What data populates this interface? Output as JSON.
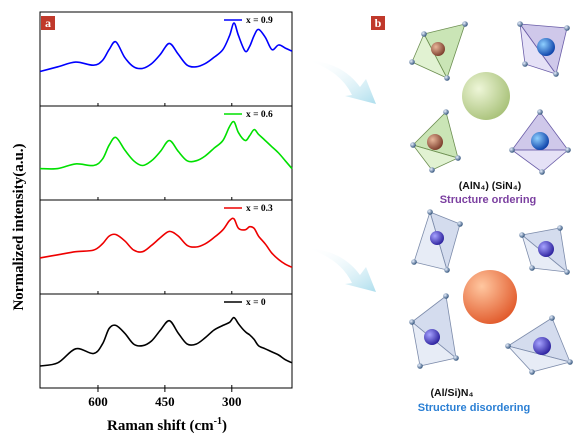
{
  "panel_a_label": "a",
  "panel_b_label": "b",
  "colors": {
    "badge": "#c0392b",
    "series": [
      "#0000ff",
      "#00e000",
      "#ee0000",
      "#000000"
    ],
    "ordering": "#7b3fa0",
    "disordering": "#2a7fd4",
    "arrow": "#bfe4f0"
  },
  "chart_data": {
    "type": "line",
    "xlabel": "Raman shift (cm",
    "xlabel_sup": "-1",
    "xlabel_end": ")",
    "ylabel": "Normalized intensity(a.u.)",
    "x_reversed": true,
    "xlim": [
      730,
      165
    ],
    "x_ticks": [
      600,
      450,
      300
    ],
    "x_tick_labels": [
      "600",
      "450",
      "300"
    ],
    "layout": "stacked panels, legend top-right of each panel",
    "series": [
      {
        "name": "x = 0.9",
        "x": [
          730,
          690,
          650,
          610,
          590,
          575,
          560,
          540,
          520,
          500,
          480,
          460,
          440,
          420,
          400,
          380,
          360,
          340,
          320,
          305,
          295,
          285,
          270,
          260,
          250,
          240,
          225,
          210,
          195,
          180,
          165
        ],
        "y": [
          0.34,
          0.4,
          0.46,
          0.42,
          0.48,
          0.62,
          0.72,
          0.52,
          0.4,
          0.38,
          0.44,
          0.56,
          0.7,
          0.56,
          0.42,
          0.4,
          0.44,
          0.52,
          0.62,
          0.8,
          0.96,
          0.8,
          0.6,
          0.66,
          0.8,
          0.88,
          0.78,
          0.62,
          0.68,
          0.64,
          0.6
        ]
      },
      {
        "name": "x = 0.6",
        "x": [
          730,
          690,
          650,
          610,
          590,
          575,
          560,
          540,
          520,
          500,
          480,
          460,
          440,
          420,
          400,
          380,
          360,
          340,
          320,
          305,
          295,
          285,
          270,
          260,
          250,
          240,
          225,
          210,
          195,
          180,
          165
        ],
        "y": [
          0.3,
          0.3,
          0.36,
          0.34,
          0.42,
          0.6,
          0.7,
          0.54,
          0.4,
          0.34,
          0.4,
          0.52,
          0.66,
          0.52,
          0.4,
          0.4,
          0.46,
          0.56,
          0.66,
          0.84,
          0.9,
          0.76,
          0.66,
          0.72,
          0.8,
          0.74,
          0.66,
          0.58,
          0.5,
          0.4,
          0.3
        ]
      },
      {
        "name": "x = 0.3",
        "x": [
          730,
          690,
          650,
          610,
          590,
          575,
          560,
          540,
          520,
          500,
          480,
          460,
          440,
          420,
          400,
          380,
          360,
          340,
          320,
          305,
          295,
          285,
          270,
          260,
          250,
          240,
          225,
          210,
          195,
          180,
          165
        ],
        "y": [
          0.36,
          0.4,
          0.44,
          0.46,
          0.54,
          0.64,
          0.66,
          0.58,
          0.46,
          0.44,
          0.52,
          0.62,
          0.7,
          0.64,
          0.52,
          0.5,
          0.54,
          0.62,
          0.72,
          0.84,
          0.86,
          0.74,
          0.72,
          0.76,
          0.74,
          0.64,
          0.54,
          0.42,
          0.34,
          0.28,
          0.24
        ]
      },
      {
        "name": "x = 0",
        "x": [
          730,
          690,
          650,
          610,
          590,
          575,
          560,
          540,
          520,
          500,
          480,
          460,
          440,
          420,
          400,
          380,
          360,
          340,
          320,
          305,
          295,
          285,
          270,
          260,
          250,
          240,
          225,
          210,
          195,
          180,
          165
        ],
        "y": [
          0.18,
          0.22,
          0.4,
          0.34,
          0.46,
          0.66,
          0.7,
          0.6,
          0.46,
          0.44,
          0.5,
          0.64,
          0.76,
          0.6,
          0.46,
          0.46,
          0.54,
          0.64,
          0.7,
          0.74,
          0.8,
          0.72,
          0.62,
          0.58,
          0.52,
          0.44,
          0.4,
          0.36,
          0.32,
          0.26,
          0.22
        ]
      }
    ]
  },
  "diagram": {
    "ordering_formula": "(AlN₄) (SiN₄)",
    "ordering_text": "Structure ordering",
    "disordering_formula": "(Al/Si)N₄",
    "disordering_text": "Structure disordering"
  }
}
